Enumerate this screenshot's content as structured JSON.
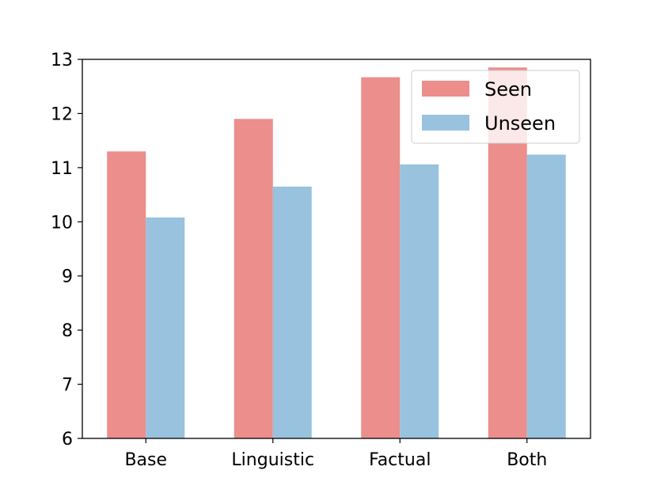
{
  "chart_data": {
    "type": "bar",
    "categories": [
      "Base",
      "Linguistic",
      "Factual",
      "Both"
    ],
    "series": [
      {
        "name": "Seen",
        "color": "#eb8e8c",
        "values": [
          11.3,
          11.9,
          12.67,
          12.85
        ]
      },
      {
        "name": "Unseen",
        "color": "#98c2dd",
        "values": [
          10.08,
          10.65,
          11.06,
          11.24
        ]
      }
    ],
    "title": "",
    "xlabel": "",
    "ylabel": "",
    "ylim": [
      6,
      13
    ],
    "yticks": [
      "6",
      "7",
      "8",
      "9",
      "10",
      "11",
      "12",
      "13"
    ],
    "grid": false,
    "legend": "top-right"
  }
}
